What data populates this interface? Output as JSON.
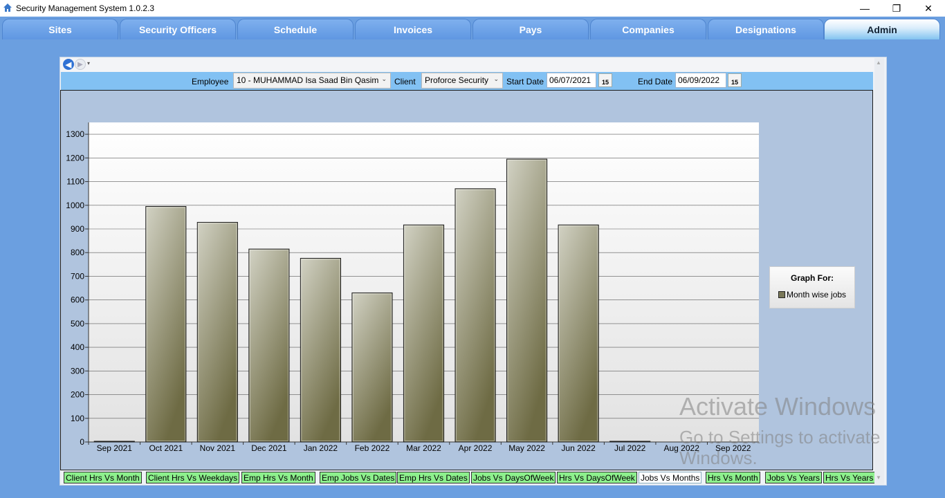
{
  "window": {
    "title": "Security Management System 1.0.2.3",
    "minimize": "—",
    "restore": "❐",
    "close": "✕"
  },
  "tabs": [
    {
      "label": "Sites"
    },
    {
      "label": "Security Officers"
    },
    {
      "label": "Schedule"
    },
    {
      "label": "Invoices"
    },
    {
      "label": "Pays"
    },
    {
      "label": "Companies"
    },
    {
      "label": "Designations"
    },
    {
      "label": "Admin",
      "active": true
    }
  ],
  "nav": {
    "back_icon": "back-arrow-icon",
    "forward_icon": "forward-arrow-icon",
    "dropdown": "▾"
  },
  "filters": {
    "employee_label": "Employee",
    "employee_value": "10 - MUHAMMAD Isa Saad Bin Qasim",
    "client_label": "Client",
    "client_value": "Proforce Security",
    "start_label": "Start Date",
    "start_value": "06/07/2021",
    "end_label": "End Date",
    "end_value": "06/09/2022",
    "calendar_day": "15",
    "combo_arrow": "⌄"
  },
  "chart_data": {
    "type": "bar",
    "categories": [
      "Sep 2021",
      "Oct 2021",
      "Nov 2021",
      "Dec 2021",
      "Jan 2022",
      "Feb 2022",
      "Mar 2022",
      "Apr 2022",
      "May 2022",
      "Jun 2022",
      "Jul 2022",
      "Aug 2022",
      "Sep 2022"
    ],
    "series": [
      {
        "name": "Month wise jobs",
        "values": [
          3,
          995,
          928,
          815,
          776,
          630,
          917,
          1070,
          1195,
          917,
          3,
          0,
          0
        ]
      }
    ],
    "ylim": [
      0,
      1350
    ],
    "yticks": [
      0,
      100,
      200,
      300,
      400,
      500,
      600,
      700,
      800,
      900,
      1000,
      1100,
      1200,
      1300
    ],
    "legend_title": "Graph For:",
    "legend_position": "right",
    "grid": true,
    "bar_color": "#787552"
  },
  "bottom_tabs": [
    {
      "label": "Client Hrs Vs Month"
    },
    {
      "label": "Client Hrs Vs Weekdays"
    },
    {
      "label": "Emp Hrs Vs Month"
    },
    {
      "label": "Emp Jobs Vs Dates"
    },
    {
      "label": "Emp Hrs Vs Dates"
    },
    {
      "label": "Jobs Vs DaysOfWeek"
    },
    {
      "label": "Hrs Vs DaysOfWeek"
    },
    {
      "label": "Jobs Vs Months",
      "active": true
    },
    {
      "label": "Hrs Vs Month"
    },
    {
      "label": "Jobs Vs Years"
    },
    {
      "label": "Hrs Vs Years"
    }
  ],
  "scroll": {
    "up": "▲",
    "down": "▼"
  },
  "watermark": {
    "line1": "Activate Windows",
    "line2": "Go to Settings to activate Windows."
  }
}
